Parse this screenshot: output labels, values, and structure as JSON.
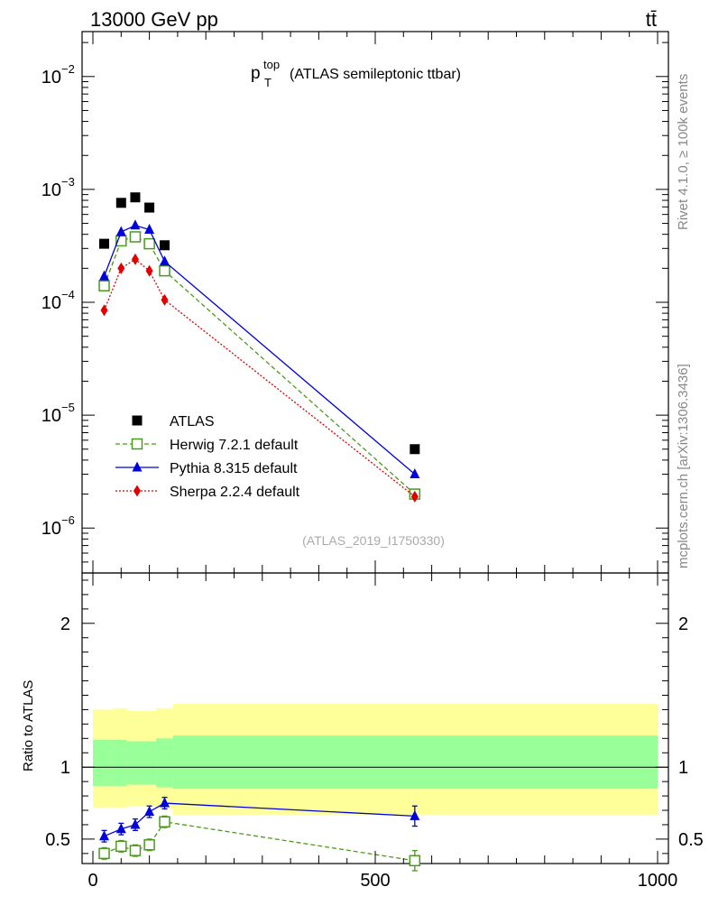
{
  "header": {
    "left": "13000 GeV pp",
    "right": "tt̄"
  },
  "side_label_top": "Rivet 4.1.0, ≥ 100k events",
  "side_label_bottom": "mcplots.cern.ch [arXiv:1306.3436]",
  "chart_data": {
    "type": "scatter",
    "title": {
      "main": "p",
      "sup": "top",
      "sub": "T",
      "rest": "(ATLAS semileptonic ttbar)"
    },
    "watermark": "(ATLAS_2019_I1750330)",
    "yscale": "log",
    "ylim": [
      4e-07,
      0.025
    ],
    "xlim": [
      -10,
      1000
    ],
    "ytick_labels": [
      {
        "value": 0.01,
        "base": "10",
        "exp": "−2"
      },
      {
        "value": 0.001,
        "base": "10",
        "exp": "−3"
      },
      {
        "value": 0.0001,
        "base": "10",
        "exp": "−4"
      },
      {
        "value": 1e-05,
        "base": "10",
        "exp": "−5"
      },
      {
        "value": 1e-06,
        "base": "10",
        "exp": "−6"
      }
    ],
    "xticks": [
      0,
      500,
      1000
    ],
    "xtick_labels": [
      "0",
      "500",
      "1000"
    ],
    "x": [
      20,
      50,
      75,
      100,
      127,
      570
    ],
    "series": [
      {
        "name": "ATLAS",
        "color": "#000000",
        "marker": "square-filled",
        "line": "none",
        "values": [
          0.00033,
          0.00076,
          0.00085,
          0.00069,
          0.00032,
          5e-06
        ]
      },
      {
        "name": "Herwig 7.2.1 default",
        "color": "#4a9a1c",
        "marker": "square-open",
        "line": "dashed",
        "values": [
          0.00014,
          0.00035,
          0.00038,
          0.00033,
          0.00019,
          2e-06
        ]
      },
      {
        "name": "Pythia 8.315 default",
        "color": "#0000dd",
        "marker": "triangle",
        "line": "solid",
        "values": [
          0.00017,
          0.00042,
          0.00048,
          0.00044,
          0.00023,
          3e-06
        ]
      },
      {
        "name": "Sherpa 2.2.4 default",
        "color": "#e00000",
        "marker": "diamond",
        "line": "dotted",
        "values": [
          8.5e-05,
          0.0002,
          0.00024,
          0.00019,
          0.000105,
          1.9e-06
        ]
      }
    ],
    "ratio": {
      "ylabel": "Ratio to ATLAS",
      "ylim": [
        0.33,
        2.35
      ],
      "yticks": [
        0.5,
        1,
        2
      ],
      "ytick_labels": [
        "0.5",
        "1",
        "2"
      ],
      "band_colors": {
        "inner": "#99ff99",
        "outer": "#ffff99"
      },
      "bands": [
        {
          "x0": 0,
          "x1": 35,
          "inner": [
            0.87,
            1.19
          ],
          "outer": [
            0.72,
            1.4
          ]
        },
        {
          "x0": 35,
          "x1": 60,
          "inner": [
            0.87,
            1.19
          ],
          "outer": [
            0.72,
            1.41
          ]
        },
        {
          "x0": 60,
          "x1": 87,
          "inner": [
            0.88,
            1.18
          ],
          "outer": [
            0.73,
            1.39
          ]
        },
        {
          "x0": 87,
          "x1": 112,
          "inner": [
            0.88,
            1.18
          ],
          "outer": [
            0.73,
            1.39
          ]
        },
        {
          "x0": 112,
          "x1": 142,
          "inner": [
            0.86,
            1.2
          ],
          "outer": [
            0.71,
            1.41
          ]
        },
        {
          "x0": 142,
          "x1": 1000,
          "inner": [
            0.85,
            1.22
          ],
          "outer": [
            0.67,
            1.44
          ]
        }
      ],
      "series": [
        {
          "name": "Herwig 7.2.1 default",
          "color": "#4a9a1c",
          "marker": "square-open",
          "line": "dashed",
          "values": [
            0.4,
            0.45,
            0.42,
            0.46,
            0.62,
            0.35
          ],
          "errors": [
            0.04,
            0.04,
            0.04,
            0.04,
            0.04,
            0.07
          ]
        },
        {
          "name": "Pythia 8.315 default",
          "color": "#0000dd",
          "marker": "triangle",
          "line": "solid",
          "values": [
            0.52,
            0.57,
            0.6,
            0.69,
            0.75,
            0.66
          ],
          "errors": [
            0.04,
            0.04,
            0.04,
            0.04,
            0.04,
            0.07
          ]
        }
      ]
    }
  }
}
